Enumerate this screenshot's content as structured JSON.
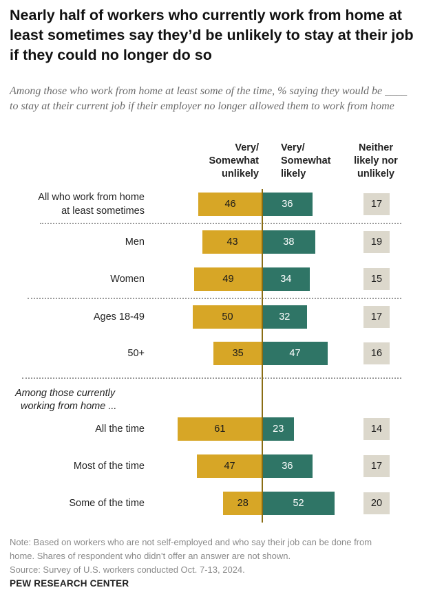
{
  "title": "Nearly half of workers who currently work from home at least sometimes say they’d be unlikely to stay at their job if they could no longer do so",
  "subtitle": "Among those who work from home at least some of the time, % saying they would be ____ to stay at their current job if their employer no longer allowed them to work from home",
  "columns": {
    "unlikely": [
      "Very/",
      "Somewhat",
      "unlikely"
    ],
    "likely": [
      "Very/",
      "Somewhat",
      "likely"
    ],
    "neither": [
      "Neither",
      "likely nor",
      "unlikely"
    ]
  },
  "group_label": [
    "Among those currently",
    "working from home ..."
  ],
  "chart_data": {
    "type": "diverging bar",
    "title": "Nearly half of workers who currently work from home at least sometimes say they’d be unlikely to stay at their job if they could no longer do so",
    "categories": [
      "All who work from home at least sometimes",
      "Men",
      "Women",
      "Ages 18-49",
      "50+",
      "All the time",
      "Most of the time",
      "Some of the time"
    ],
    "series": [
      {
        "name": "Very/Somewhat unlikely",
        "color": "#d7a626",
        "values": [
          46,
          43,
          49,
          50,
          35,
          61,
          47,
          28
        ]
      },
      {
        "name": "Very/Somewhat likely",
        "color": "#2f7566",
        "values": [
          36,
          38,
          34,
          32,
          47,
          23,
          36,
          52
        ]
      },
      {
        "name": "Neither likely nor unlikely",
        "color": "#dcd8cc",
        "values": [
          17,
          19,
          15,
          17,
          16,
          14,
          17,
          20
        ]
      }
    ],
    "label_lines": [
      [
        "All who work from home",
        "at least sometimes"
      ],
      [
        "Men"
      ],
      [
        "Women"
      ],
      [
        "Ages 18-49"
      ],
      [
        "50+"
      ],
      [
        "All the time"
      ],
      [
        "Most of the time"
      ],
      [
        "Some of the time"
      ]
    ]
  },
  "note": [
    "Note: Based on workers who are not self-employed and who say their job can be done from",
    "home. Shares of respondent who didn’t offer an answer are not shown.",
    "Source: Survey of U.S. workers conducted Oct. 7-13, 2024."
  ],
  "source_brand": "PEW RESEARCH CENTER"
}
